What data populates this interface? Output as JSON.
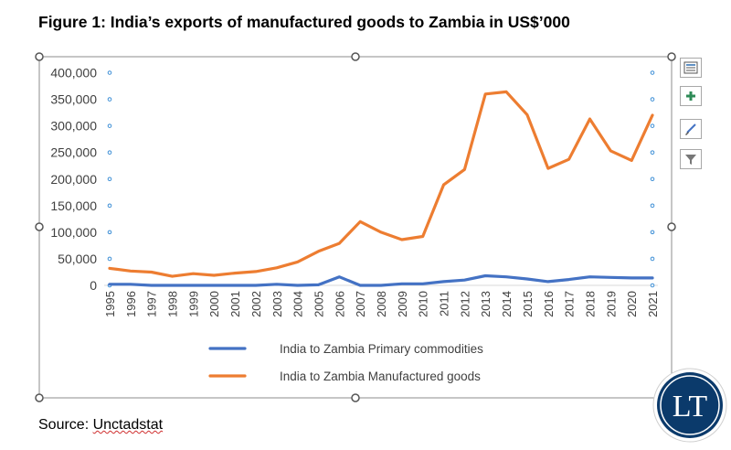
{
  "figure": {
    "title": "Figure 1: India’s exports of manufactured goods to Zambia in US$’000",
    "source_prefix": "Source: ",
    "source_name": "Unctadstat"
  },
  "logo": {
    "text": "LT"
  },
  "chart_data": {
    "type": "line",
    "title": "",
    "xlabel": "",
    "ylabel": "",
    "ylim": [
      0,
      400000
    ],
    "yticks": [
      0,
      50000,
      100000,
      150000,
      200000,
      250000,
      300000,
      350000,
      400000
    ],
    "ytick_labels": [
      "0",
      "50,000",
      "100,000",
      "150,000",
      "200,000",
      "250,000",
      "300,000",
      "350,000",
      "400,000"
    ],
    "grid": false,
    "legend_position": "bottom",
    "categories": [
      "1995",
      "1996",
      "1997",
      "1998",
      "1999",
      "2000",
      "2001",
      "2002",
      "2003",
      "2004",
      "2005",
      "2006",
      "2007",
      "2008",
      "2009",
      "2010",
      "2011",
      "2012",
      "2013",
      "2014",
      "2015",
      "2016",
      "2017",
      "2018",
      "2019",
      "2020",
      "2021"
    ],
    "series": [
      {
        "name": "India to Zambia Primary commodities",
        "color": "#4472c4",
        "values": [
          2000,
          2000,
          0,
          0,
          0,
          0,
          0,
          0,
          2000,
          0,
          1000,
          16000,
          0,
          0,
          3000,
          3000,
          7000,
          10000,
          18000,
          16000,
          12000,
          7000,
          11000,
          16000,
          15000,
          14000,
          14000
        ]
      },
      {
        "name": "India to Zambia Manufactured goods",
        "color": "#ed7d31",
        "values": [
          32000,
          27000,
          25000,
          17000,
          22000,
          19000,
          23000,
          26000,
          33000,
          44000,
          64000,
          79000,
          120000,
          100000,
          86000,
          92000,
          189000,
          218000,
          360000,
          364000,
          321000,
          220000,
          237000,
          313000,
          253000,
          235000,
          320000
        ]
      }
    ]
  },
  "toolbar": {
    "buttons": [
      {
        "name": "chart-elements-button",
        "icon": "layout-icon"
      },
      {
        "name": "add-element-button",
        "icon": "plus-icon"
      },
      {
        "name": "chart-styles-button",
        "icon": "brush-icon"
      },
      {
        "name": "chart-filters-button",
        "icon": "filter-icon"
      }
    ]
  }
}
